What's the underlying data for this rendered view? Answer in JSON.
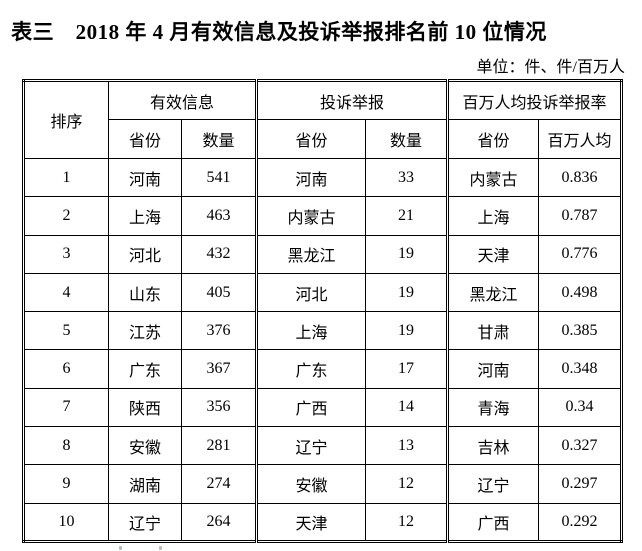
{
  "title": "表三　2018 年 4 月有效信息及投诉举报排名前 10 位情况",
  "unit_label": "单位：件、件/百万人",
  "colors": {
    "text": "#000000",
    "border": "#000000",
    "background": "#ffffff"
  },
  "table": {
    "header": {
      "rank": "排序",
      "groups": [
        {
          "label": "有效信息",
          "cols": [
            "省份",
            "数量"
          ]
        },
        {
          "label": "投诉举报",
          "cols": [
            "省份",
            "数量"
          ]
        },
        {
          "label": "百万人均投诉举报率",
          "cols": [
            "省份",
            "百万人均"
          ]
        }
      ]
    },
    "column_keys": [
      "rank",
      "valid_province",
      "valid_count",
      "complaint_province",
      "complaint_count",
      "percap_province",
      "percap_rate"
    ],
    "group_separator_keys": [
      "complaint_province",
      "percap_province"
    ],
    "rows": [
      {
        "rank": "1",
        "valid_province": "河南",
        "valid_count": "541",
        "complaint_province": "河南",
        "complaint_count": "33",
        "percap_province": "内蒙古",
        "percap_rate": "0.836"
      },
      {
        "rank": "2",
        "valid_province": "上海",
        "valid_count": "463",
        "complaint_province": "内蒙古",
        "complaint_count": "21",
        "percap_province": "上海",
        "percap_rate": "0.787"
      },
      {
        "rank": "3",
        "valid_province": "河北",
        "valid_count": "432",
        "complaint_province": "黑龙江",
        "complaint_count": "19",
        "percap_province": "天津",
        "percap_rate": "0.776"
      },
      {
        "rank": "4",
        "valid_province": "山东",
        "valid_count": "405",
        "complaint_province": "河北",
        "complaint_count": "19",
        "percap_province": "黑龙江",
        "percap_rate": "0.498"
      },
      {
        "rank": "5",
        "valid_province": "江苏",
        "valid_count": "376",
        "complaint_province": "上海",
        "complaint_count": "19",
        "percap_province": "甘肃",
        "percap_rate": "0.385"
      },
      {
        "rank": "6",
        "valid_province": "广东",
        "valid_count": "367",
        "complaint_province": "广东",
        "complaint_count": "17",
        "percap_province": "河南",
        "percap_rate": "0.348"
      },
      {
        "rank": "7",
        "valid_province": "陕西",
        "valid_count": "356",
        "complaint_province": "广西",
        "complaint_count": "14",
        "percap_province": "青海",
        "percap_rate": "0.34"
      },
      {
        "rank": "8",
        "valid_province": "安徽",
        "valid_count": "281",
        "complaint_province": "辽宁",
        "complaint_count": "13",
        "percap_province": "吉林",
        "percap_rate": "0.327"
      },
      {
        "rank": "9",
        "valid_province": "湖南",
        "valid_count": "274",
        "complaint_province": "安徽",
        "complaint_count": "12",
        "percap_province": "辽宁",
        "percap_rate": "0.297"
      },
      {
        "rank": "10",
        "valid_province": "辽宁",
        "valid_count": "264",
        "complaint_province": "天津",
        "complaint_count": "12",
        "percap_province": "广西",
        "percap_rate": "0.292"
      }
    ]
  }
}
